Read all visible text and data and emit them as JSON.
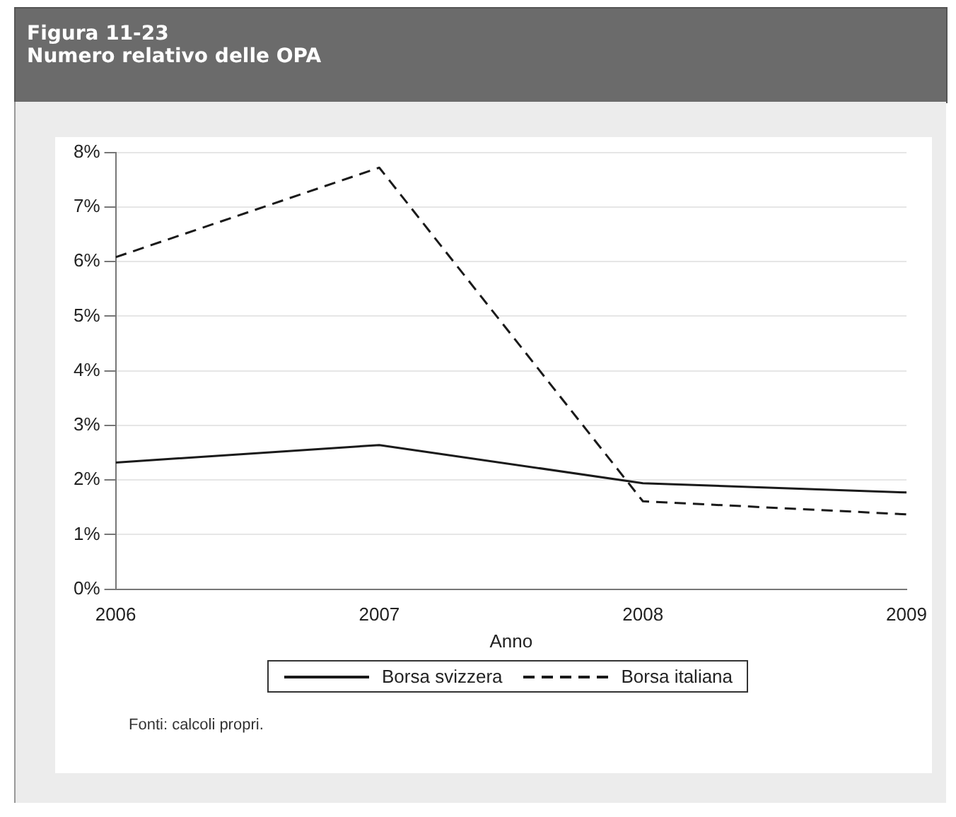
{
  "chart_data": {
    "type": "line",
    "title": "Figura 11-23",
    "subtitle": "Numero relativo delle OPA",
    "xlabel": "Anno",
    "x": [
      2006,
      2007,
      2008,
      2009
    ],
    "series": [
      {
        "name": "Borsa svizzera",
        "color": "#1a1a1a",
        "line_style": "solid",
        "values": [
          2.32,
          2.64,
          1.94,
          1.77
        ]
      },
      {
        "name": "Borsa italiana",
        "color": "#1a1a1a",
        "line_style": "dashed",
        "values": [
          6.08,
          7.72,
          1.61,
          1.37
        ]
      }
    ],
    "xlim": [
      2006,
      2009
    ],
    "xticks": [
      2006,
      2007,
      2008,
      2009
    ],
    "ylim": [
      0,
      8
    ],
    "yticks": [
      {
        "value": 0,
        "label": "0%"
      },
      {
        "value": 1,
        "label": "1%"
      },
      {
        "value": 2,
        "label": "2%"
      },
      {
        "value": 3,
        "label": "3%"
      },
      {
        "value": 4,
        "label": "4%"
      },
      {
        "value": 5,
        "label": "5%"
      },
      {
        "value": 6,
        "label": "6%"
      },
      {
        "value": 7,
        "label": "7%"
      },
      {
        "value": 8,
        "label": "8%"
      }
    ],
    "grid": "y",
    "legend": "bottom",
    "marker": "none",
    "annotations": [
      "Fonti: calcoli propri."
    ]
  }
}
